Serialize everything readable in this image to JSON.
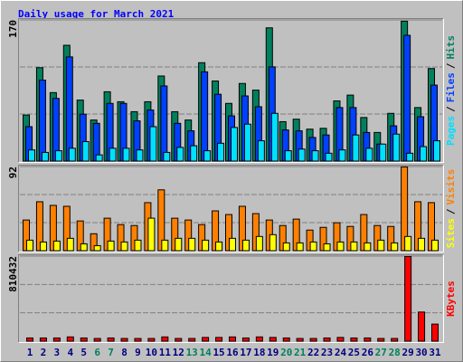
{
  "title": "Daily usage for March 2021",
  "legend_separator": "/",
  "chart_data": [
    {
      "type": "bar",
      "ylim": [
        0,
        170
      ],
      "yticks": [
        170
      ],
      "series": [
        {
          "name": "Hits",
          "color": "#00805c",
          "values": [
            56,
            113,
            83,
            140,
            74,
            50,
            84,
            72,
            60,
            72,
            103,
            60,
            50,
            119,
            97,
            70,
            94,
            86,
            161,
            48,
            51,
            39,
            40,
            73,
            80,
            53,
            35,
            58,
            169,
            65,
            112
          ]
        },
        {
          "name": "Files",
          "color": "#0040ff",
          "values": [
            42,
            98,
            76,
            126,
            57,
            46,
            70,
            70,
            49,
            62,
            91,
            46,
            37,
            108,
            81,
            55,
            79,
            66,
            114,
            38,
            37,
            29,
            32,
            65,
            65,
            35,
            21,
            43,
            152,
            54,
            92
          ]
        },
        {
          "name": "Pages",
          "color": "#00e0ff",
          "values": [
            14,
            11,
            13,
            16,
            24,
            8,
            16,
            16,
            14,
            42,
            11,
            17,
            19,
            13,
            22,
            41,
            45,
            25,
            58,
            13,
            15,
            13,
            10,
            14,
            32,
            16,
            21,
            33,
            10,
            18,
            25
          ]
        }
      ]
    },
    {
      "type": "bar",
      "ylim": [
        0,
        92
      ],
      "yticks": [
        92
      ],
      "series": [
        {
          "name": "Visits",
          "color": "#ff8000",
          "values": [
            34,
            54,
            50,
            49,
            33,
            19,
            36,
            29,
            28,
            53,
            67,
            36,
            34,
            29,
            44,
            40,
            49,
            41,
            34,
            28,
            35,
            23,
            26,
            31,
            27,
            40,
            28,
            27,
            92,
            54,
            53
          ]
        },
        {
          "name": "Sites",
          "color": "#ffff00",
          "values": [
            12,
            10,
            11,
            14,
            8,
            6,
            11,
            10,
            12,
            36,
            12,
            14,
            14,
            12,
            10,
            14,
            12,
            16,
            18,
            9,
            9,
            10,
            8,
            10,
            10,
            9,
            12,
            9,
            16,
            14,
            12
          ]
        }
      ]
    },
    {
      "type": "bar",
      "ylim": [
        0,
        810432
      ],
      "yticks": [
        810432
      ],
      "categories": [
        "1",
        "2",
        "3",
        "4",
        "5",
        "6",
        "7",
        "8",
        "9",
        "10",
        "11",
        "12",
        "13",
        "14",
        "15",
        "16",
        "17",
        "18",
        "19",
        "20",
        "21",
        "22",
        "23",
        "24",
        "25",
        "26",
        "27",
        "28",
        "29",
        "30",
        "31"
      ],
      "category_colors": [
        "#000080",
        "#000080",
        "#000080",
        "#000080",
        "#000080",
        "#00805c",
        "#00805c",
        "#000080",
        "#000080",
        "#000080",
        "#000080",
        "#000080",
        "#00805c",
        "#00805c",
        "#000080",
        "#000080",
        "#000080",
        "#000080",
        "#000080",
        "#00805c",
        "#00805c",
        "#000080",
        "#000080",
        "#000080",
        "#000080",
        "#000080",
        "#00805c",
        "#00805c",
        "#000080",
        "#000080",
        "#000080"
      ],
      "series": [
        {
          "name": "KBytes",
          "color": "#ff0000",
          "values": [
            35000,
            35000,
            35000,
            45000,
            35000,
            30000,
            35000,
            30000,
            30000,
            30000,
            45000,
            30000,
            30000,
            40000,
            40000,
            45000,
            35000,
            45000,
            40000,
            35000,
            30000,
            30000,
            35000,
            40000,
            35000,
            35000,
            30000,
            30000,
            810432,
            282000,
            167000
          ]
        }
      ]
    }
  ]
}
